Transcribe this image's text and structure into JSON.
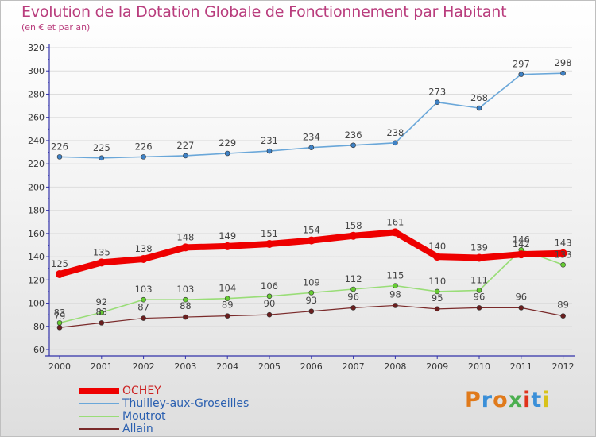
{
  "header": {
    "title": "Evolution de la Dotation Globale de Fonctionnement par Habitant",
    "subtitle": "(en € et par an)"
  },
  "logo": {
    "text": "Proxiti",
    "colors": [
      "#e07a1b",
      "#3a8fd8",
      "#e07a1b",
      "#4caf50",
      "#e0321b",
      "#3a8fd8",
      "#d8c21b"
    ]
  },
  "colors": {
    "title": "#b93d7d",
    "axis": "#3333aa",
    "gridline": "#dddddd"
  },
  "chart_data": {
    "type": "line",
    "title": "Evolution de la Dotation Globale de Fonctionnement par Habitant",
    "subtitle": "(en € et par an)",
    "x": [
      "2000",
      "2001",
      "2002",
      "2003",
      "2004",
      "2005",
      "2006",
      "2007",
      "2008",
      "2009",
      "2010",
      "2011",
      "2012"
    ],
    "ylim": [
      60,
      320
    ],
    "yticks": [
      60,
      80,
      100,
      120,
      140,
      160,
      180,
      200,
      220,
      240,
      260,
      280,
      300,
      320
    ],
    "grid": true,
    "legend": "bottom-left",
    "series": [
      {
        "name": "OCHEY",
        "color": "#ee0000",
        "lineWidth": 8,
        "markerRadius": 5,
        "values": [
          125,
          135,
          138,
          148,
          149,
          151,
          154,
          158,
          161,
          140,
          139,
          142,
          143
        ]
      },
      {
        "name": "Thuilley-aux-Groseilles",
        "color": "#6aa7d9",
        "lineWidth": 1.6,
        "markerRadius": 3,
        "markerColor": "#3f82c6",
        "values": [
          226,
          225,
          226,
          227,
          229,
          231,
          234,
          236,
          238,
          273,
          268,
          297,
          298
        ]
      },
      {
        "name": "Moutrot",
        "color": "#99dd77",
        "lineWidth": 1.6,
        "markerRadius": 3,
        "markerColor": "#66cc33",
        "values": [
          83,
          92,
          103,
          103,
          104,
          106,
          109,
          112,
          115,
          110,
          111,
          146,
          133
        ]
      },
      {
        "name": "Allain",
        "color": "#7a2a2a",
        "lineWidth": 1.2,
        "markerRadius": 3,
        "markerColor": "#6b1f1f",
        "values": [
          79,
          83,
          87,
          88,
          89,
          90,
          93,
          96,
          98,
          95,
          96,
          96,
          89
        ]
      }
    ]
  }
}
